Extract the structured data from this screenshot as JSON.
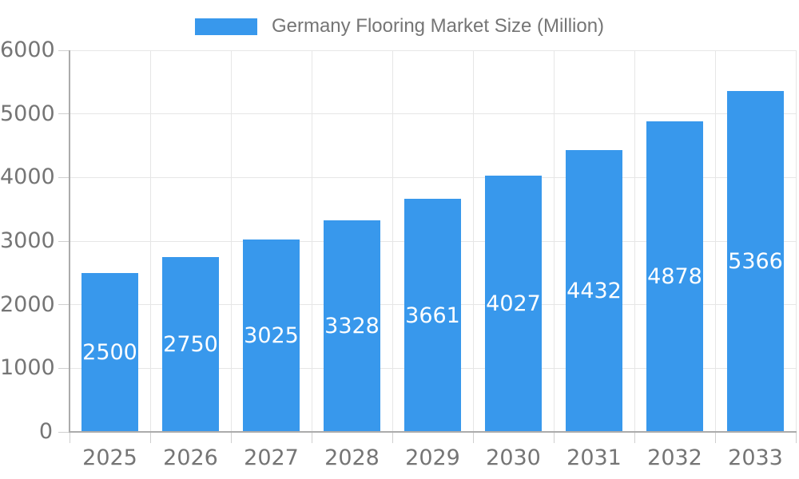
{
  "legend": {
    "label": "Germany Flooring Market Size (Million)"
  },
  "colors": {
    "bar": "#3898ec",
    "axis_text": "#757575",
    "grid": "#e6e6e6",
    "tick": "#cfcfcf",
    "axis_line": "#ababab",
    "value_text": "#ffffff"
  },
  "chart_data": {
    "type": "bar",
    "title": "Germany Flooring Market Size (Million)",
    "categories": [
      "2025",
      "2026",
      "2027",
      "2028",
      "2029",
      "2030",
      "2031",
      "2032",
      "2033"
    ],
    "values": [
      2500,
      2750,
      3025,
      3328,
      3661,
      4027,
      4432,
      4878,
      5366
    ],
    "xlabel": "",
    "ylabel": "",
    "ylim": [
      0,
      6000
    ],
    "ytick_step": 1000,
    "ytick_labels": [
      "0",
      "1000",
      "2000",
      "3000",
      "4000",
      "5000",
      "6000"
    ],
    "grid": true,
    "legend_position": "top",
    "value_labels": "inside-center",
    "bar_color": "#3898ec"
  }
}
